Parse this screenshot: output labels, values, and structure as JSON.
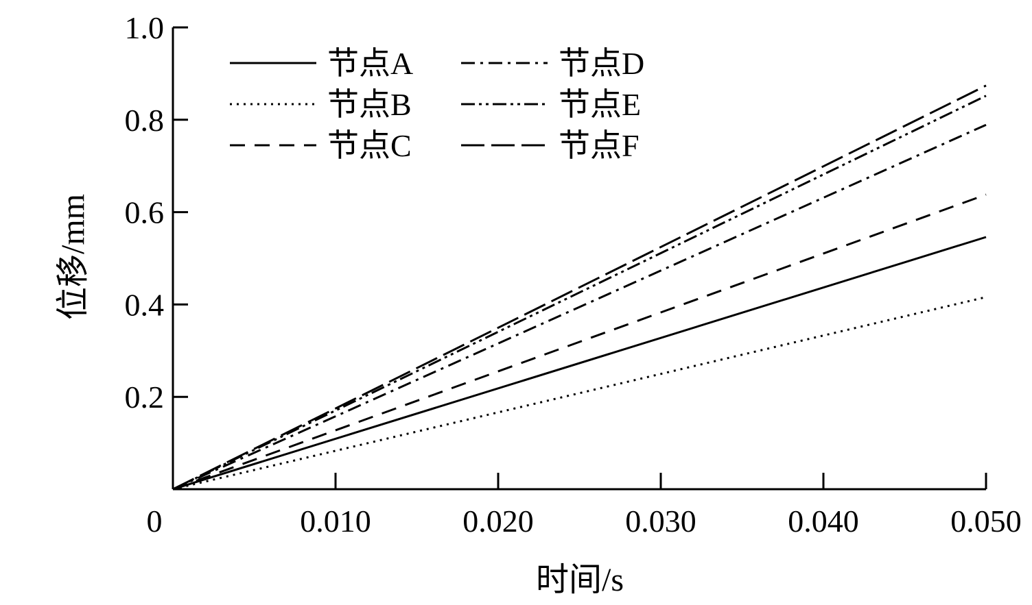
{
  "chart_data": {
    "type": "line",
    "xlabel": "时间/s",
    "ylabel": "位移/mm",
    "xlim": [
      0,
      0.05
    ],
    "ylim": [
      0,
      1.0
    ],
    "x_ticks": [
      0,
      0.01,
      0.02,
      0.03,
      0.04,
      0.05
    ],
    "x_tick_labels": [
      "0",
      "0.010",
      "0.020",
      "0.030",
      "0.040",
      "0.050"
    ],
    "y_ticks": [
      0.2,
      0.4,
      0.6,
      0.8,
      1.0
    ],
    "y_tick_labels": [
      "0.2",
      "0.4",
      "0.6",
      "0.8",
      "1.0"
    ],
    "grid": false,
    "legend_position": "top-left",
    "x": [
      0,
      0.05
    ],
    "series": [
      {
        "name": "节点A",
        "style": "solid",
        "values": [
          0,
          0.546
        ]
      },
      {
        "name": "节点B",
        "style": "dotted",
        "values": [
          0,
          0.416
        ]
      },
      {
        "name": "节点C",
        "style": "dashed",
        "values": [
          0,
          0.638
        ]
      },
      {
        "name": "节点D",
        "style": "dash-dot",
        "values": [
          0,
          0.789
        ]
      },
      {
        "name": "节点E",
        "style": "dash-dot-dot",
        "values": [
          0,
          0.852
        ]
      },
      {
        "name": "节点F",
        "style": "long-dash",
        "values": [
          0,
          0.874
        ]
      }
    ]
  }
}
